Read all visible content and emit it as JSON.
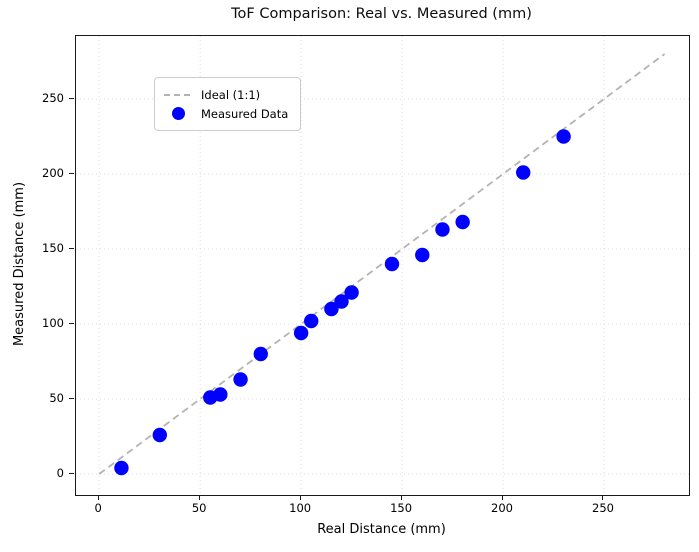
{
  "chart_data": {
    "type": "scatter",
    "title": "ToF Comparison: Real vs. Measured (mm)",
    "xlabel": "Real Distance (mm)",
    "ylabel": "Measured Distance (mm)",
    "xlim": [
      -11.5,
      292.1
    ],
    "ylim": [
      -14,
      292
    ],
    "xticks": [
      0,
      50,
      100,
      150,
      200,
      250
    ],
    "yticks": [
      0,
      50,
      100,
      150,
      200,
      250
    ],
    "grid": "dotted",
    "grid_color": "#dcdcdc",
    "legend_position": "upper left",
    "series": [
      {
        "name": "Ideal (1:1)",
        "type": "line",
        "style": "dashed",
        "color": "#b3b3b3",
        "points": [
          [
            0,
            0
          ],
          [
            280,
            280
          ]
        ]
      },
      {
        "name": "Measured Data",
        "type": "scatter",
        "color": "#0000ff",
        "points": [
          [
            11,
            4
          ],
          [
            30,
            26
          ],
          [
            55,
            51
          ],
          [
            60,
            53
          ],
          [
            70,
            63
          ],
          [
            80,
            80
          ],
          [
            100,
            94
          ],
          [
            105,
            102
          ],
          [
            115,
            110
          ],
          [
            120,
            115
          ],
          [
            125,
            121
          ],
          [
            145,
            140
          ],
          [
            160,
            146
          ],
          [
            170,
            163
          ],
          [
            180,
            168
          ],
          [
            210,
            201
          ],
          [
            230,
            225
          ]
        ]
      }
    ],
    "legend": {
      "entries": [
        {
          "label": "Ideal (1:1)",
          "swatch": "dashed-line",
          "color": "#b3b3b3"
        },
        {
          "label": "Measured Data",
          "swatch": "dot",
          "color": "#0000ff"
        }
      ]
    }
  }
}
